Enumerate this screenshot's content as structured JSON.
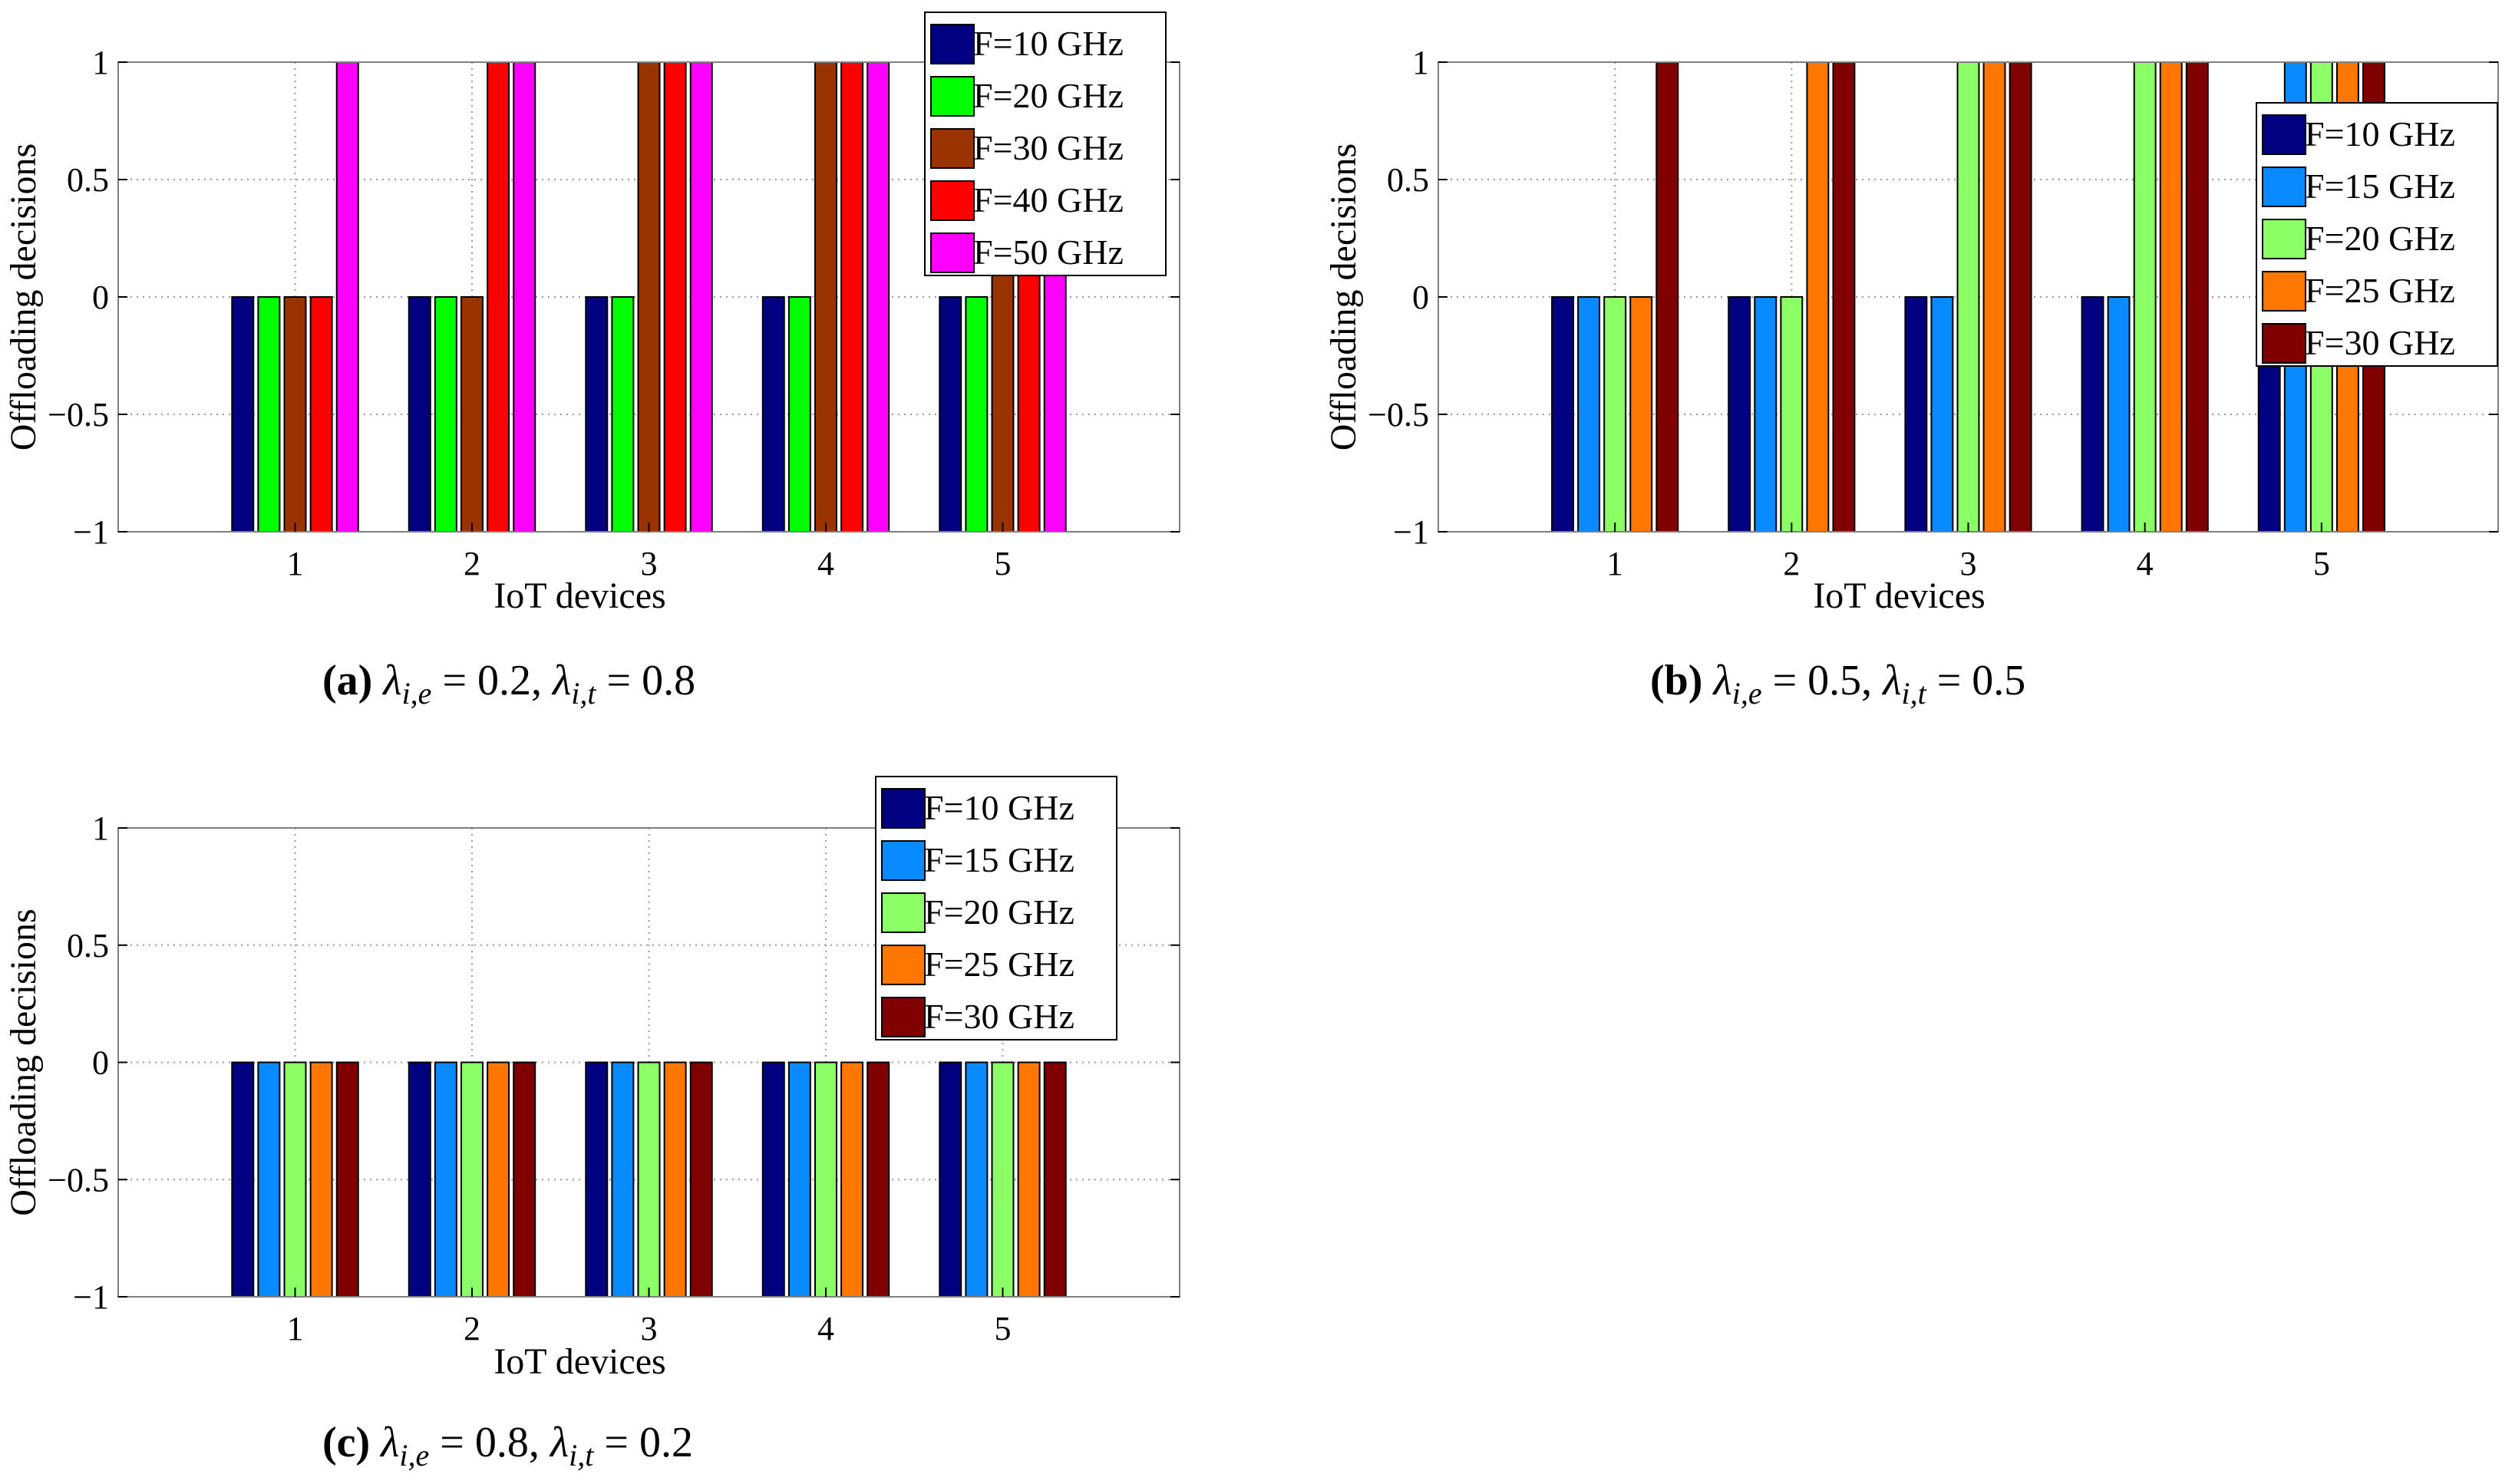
{
  "chart_data": [
    {
      "type": "bar",
      "caption": {
        "tag": "(a)",
        "lambda_e": "0.2",
        "lambda_t": "0.8"
      },
      "xlabel": "IoT devices",
      "ylabel": "Offloading decisions",
      "ylim": [
        -1,
        1
      ],
      "yticks": [
        "1",
        "0.5",
        "0",
        "−0.5",
        "−1"
      ],
      "categories": [
        "1",
        "2",
        "3",
        "4",
        "5"
      ],
      "grid": true,
      "legend_position": "top-right",
      "series": [
        {
          "name": "F=10 GHz",
          "color": "#000080",
          "values": [
            0,
            0,
            0,
            0,
            0
          ]
        },
        {
          "name": "F=20 GHz",
          "color": "#00ff00",
          "values": [
            0,
            0,
            0,
            0,
            0
          ]
        },
        {
          "name": "F=30 GHz",
          "color": "#993300",
          "values": [
            0,
            0,
            1,
            1,
            1
          ]
        },
        {
          "name": "F=40 GHz",
          "color": "#ff0000",
          "values": [
            0,
            1,
            1,
            1,
            1
          ]
        },
        {
          "name": "F=50 GHz",
          "color": "#ff00ff",
          "values": [
            1,
            1,
            1,
            1,
            1
          ]
        }
      ]
    },
    {
      "type": "bar",
      "caption": {
        "tag": "(b)",
        "lambda_e": "0.5",
        "lambda_t": "0.5"
      },
      "xlabel": "IoT devices",
      "ylabel": "Offloading decisions",
      "ylim": [
        -1,
        1
      ],
      "yticks": [
        "1",
        "0.5",
        "0",
        "−0.5",
        "−1"
      ],
      "categories": [
        "1",
        "2",
        "3",
        "4",
        "5"
      ],
      "grid": true,
      "legend_position": "right",
      "series": [
        {
          "name": "F=10 GHz",
          "color": "#000080",
          "values": [
            0,
            0,
            0,
            0,
            0
          ]
        },
        {
          "name": "F=15 GHz",
          "color": "#0a8aff",
          "values": [
            0,
            0,
            0,
            0,
            1
          ]
        },
        {
          "name": "F=20 GHz",
          "color": "#8cff66",
          "values": [
            0,
            0,
            1,
            1,
            1
          ]
        },
        {
          "name": "F=25 GHz",
          "color": "#ff7700",
          "values": [
            0,
            1,
            1,
            1,
            1
          ]
        },
        {
          "name": "F=30 GHz",
          "color": "#800000",
          "values": [
            1,
            1,
            1,
            1,
            1
          ]
        }
      ]
    },
    {
      "type": "bar",
      "caption": {
        "tag": "(c)",
        "lambda_e": "0.8",
        "lambda_t": "0.2"
      },
      "xlabel": "IoT devices",
      "ylabel": "Offloading decisions",
      "ylim": [
        -1,
        1
      ],
      "yticks": [
        "1",
        "0.5",
        "0",
        "−0.5",
        "−1"
      ],
      "categories": [
        "1",
        "2",
        "3",
        "4",
        "5"
      ],
      "grid": true,
      "legend_position": "top-right",
      "series": [
        {
          "name": "F=10 GHz",
          "color": "#000080",
          "values": [
            0,
            0,
            0,
            0,
            0
          ]
        },
        {
          "name": "F=15 GHz",
          "color": "#0a8aff",
          "values": [
            0,
            0,
            0,
            0,
            0
          ]
        },
        {
          "name": "F=20 GHz",
          "color": "#8cff66",
          "values": [
            0,
            0,
            0,
            0,
            0
          ]
        },
        {
          "name": "F=25 GHz",
          "color": "#ff7700",
          "values": [
            0,
            0,
            0,
            0,
            0
          ]
        },
        {
          "name": "F=30 GHz",
          "color": "#800000",
          "values": [
            0,
            0,
            0,
            0,
            0
          ]
        }
      ]
    }
  ]
}
